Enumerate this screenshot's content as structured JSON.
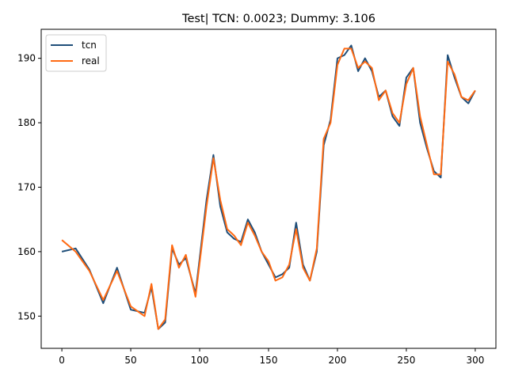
{
  "chart_data": {
    "type": "line",
    "title": "Test| TCN: 0.0023; Dummy: 3.106",
    "xlabel": "",
    "ylabel": "",
    "xlim": [
      -15,
      315
    ],
    "ylim": [
      145,
      194.5
    ],
    "xticks": [
      0,
      50,
      100,
      150,
      200,
      250,
      300
    ],
    "yticks": [
      150,
      160,
      170,
      180,
      190
    ],
    "grid": false,
    "legend_position": "top-left",
    "series": [
      {
        "name": "tcn",
        "color": "#1f4e79",
        "x": [
          0,
          10,
          20,
          30,
          40,
          50,
          60,
          65,
          70,
          75,
          80,
          85,
          90,
          97,
          105,
          110,
          115,
          120,
          125,
          130,
          135,
          140,
          145,
          150,
          155,
          160,
          165,
          170,
          175,
          180,
          185,
          190,
          195,
          200,
          205,
          210,
          215,
          220,
          225,
          230,
          235,
          240,
          245,
          250,
          255,
          260,
          265,
          270,
          275,
          280,
          285,
          290,
          295,
          300
        ],
        "y": [
          160.0,
          160.5,
          157.2,
          152.0,
          157.5,
          151.0,
          150.5,
          154.5,
          148.0,
          149.0,
          160.5,
          158.0,
          159.0,
          153.5,
          168.0,
          175.0,
          167.0,
          163.0,
          162.0,
          161.5,
          165.0,
          163.0,
          160.0,
          158.0,
          156.0,
          156.5,
          157.5,
          164.5,
          158.0,
          155.5,
          160.0,
          176.5,
          180.5,
          190.0,
          190.5,
          192.0,
          188.0,
          190.0,
          188.0,
          184.0,
          185.0,
          181.0,
          179.5,
          187.0,
          188.5,
          180.0,
          176.0,
          172.5,
          171.5,
          190.5,
          187.0,
          184.0,
          183.0,
          185.0
        ]
      },
      {
        "name": "real",
        "color": "#ff6a13",
        "x": [
          0,
          10,
          20,
          30,
          40,
          50,
          60,
          65,
          70,
          75,
          80,
          85,
          90,
          97,
          105,
          110,
          115,
          120,
          125,
          130,
          135,
          140,
          145,
          150,
          155,
          160,
          165,
          170,
          175,
          180,
          185,
          190,
          195,
          200,
          205,
          210,
          215,
          220,
          225,
          230,
          235,
          240,
          245,
          250,
          255,
          260,
          265,
          270,
          275,
          280,
          285,
          290,
          295,
          300
        ],
        "y": [
          161.8,
          160.0,
          157.0,
          152.5,
          157.0,
          151.5,
          150.0,
          155.0,
          148.0,
          149.5,
          161.0,
          157.5,
          159.5,
          153.0,
          167.0,
          174.5,
          168.0,
          163.5,
          162.5,
          161.0,
          164.5,
          162.5,
          160.0,
          158.5,
          155.5,
          156.0,
          158.0,
          163.5,
          157.5,
          155.5,
          160.5,
          177.5,
          180.0,
          189.0,
          191.5,
          191.5,
          188.5,
          189.5,
          188.5,
          183.5,
          185.0,
          181.5,
          180.0,
          186.0,
          188.5,
          181.0,
          176.5,
          172.0,
          172.0,
          189.5,
          187.5,
          184.0,
          183.5,
          185.0
        ]
      }
    ]
  }
}
